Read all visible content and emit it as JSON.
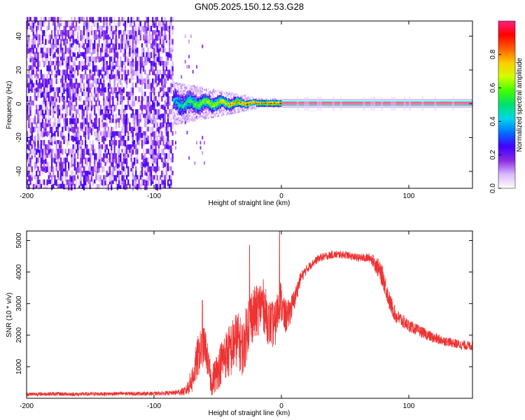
{
  "title": "GN05.2025.150.12.53.G28",
  "chart_data": [
    {
      "type": "heatmap",
      "xlabel": "Height of straight line (km)",
      "ylabel": "Frequency (Hz)",
      "xlim": [
        -200,
        150
      ],
      "ylim": [
        -50,
        49
      ],
      "x_ticks": [
        -200,
        -100,
        0,
        100
      ],
      "y_ticks": [
        -40,
        -20,
        0,
        20,
        40
      ],
      "colorbar": {
        "label": "Normalized spectral amplitude",
        "range": [
          0,
          1
        ],
        "ticks": [
          0.0,
          0.2,
          0.4,
          0.6,
          0.8
        ],
        "tick_labels": [
          "0.0",
          "0.2",
          "0.4",
          "0.6",
          "0.8"
        ],
        "colormap": [
          "#ffffff",
          "#d9b8ff",
          "#8a2be2",
          "#4000ff",
          "#0070ff",
          "#00d8e8",
          "#00e070",
          "#40ff00",
          "#d0ff00",
          "#ffcc00",
          "#ff6000",
          "#ff0000",
          "#ff2080"
        ]
      },
      "regions": [
        {
          "x_range": [
            -200,
            -85
          ],
          "freq_range": [
            -50,
            49
          ],
          "amplitude": "scattered 0.05-0.25 broadband noise"
        },
        {
          "x_range": [
            -85,
            -20
          ],
          "freq_center": 0,
          "freq_halfwidth_start": 8,
          "freq_halfwidth_end": 2,
          "amplitude": "0.3-0.9 tapering line"
        },
        {
          "x_range": [
            0,
            150
          ],
          "freq_center": 0,
          "amplitude": "0.9-1.0 narrow line"
        }
      ]
    },
    {
      "type": "line",
      "xlabel": "Height of straight line (km)",
      "ylabel": "SNR (10 * v/v)",
      "xlim": [
        -200,
        150
      ],
      "ylim": [
        0,
        5300
      ],
      "x_ticks": [
        -200,
        -100,
        0,
        100
      ],
      "y_ticks": [
        1000,
        2000,
        3000,
        4000,
        5000
      ],
      "color": "#ee3333",
      "series": [
        {
          "x": [
            -200,
            -180,
            -160,
            -140,
            -120,
            -100,
            -85,
            -75,
            -70,
            -65,
            -60,
            -55,
            -50,
            -45,
            -40,
            -35,
            -30,
            -25,
            -20,
            -15,
            -10,
            -5,
            -1,
            2,
            5,
            10,
            15,
            20,
            25,
            30,
            40,
            50,
            60,
            70,
            75,
            80,
            85,
            90,
            100,
            110,
            120,
            130,
            140,
            150
          ],
          "values": [
            130,
            140,
            130,
            140,
            150,
            150,
            170,
            230,
            600,
            1400,
            1700,
            500,
            900,
            1350,
            1500,
            1900,
            1550,
            2600,
            2700,
            3050,
            2400,
            2300,
            3200,
            2600,
            2600,
            3100,
            3800,
            4100,
            4300,
            4450,
            4550,
            4550,
            4450,
            4450,
            4200,
            3800,
            3050,
            2600,
            2300,
            2100,
            1900,
            1800,
            1700,
            1650
          ],
          "noise_amplitude": [
            120,
            120,
            120,
            120,
            120,
            120,
            140,
            300,
            900,
            1400,
            1200,
            900,
            1300,
            1500,
            1800,
            1800,
            1800,
            1900,
            1700,
            1700,
            1500,
            1500,
            1300,
            1200,
            1000,
            700,
            400,
            300,
            250,
            250,
            250,
            250,
            250,
            300,
            600,
            700,
            600,
            500,
            400,
            350,
            350,
            300,
            300,
            300
          ],
          "peaks": [
            {
              "x": -1.5,
              "y": 5300
            },
            {
              "x": -25,
              "y": 4850
            },
            {
              "x": -62,
              "y": 3100
            }
          ]
        }
      ]
    }
  ]
}
